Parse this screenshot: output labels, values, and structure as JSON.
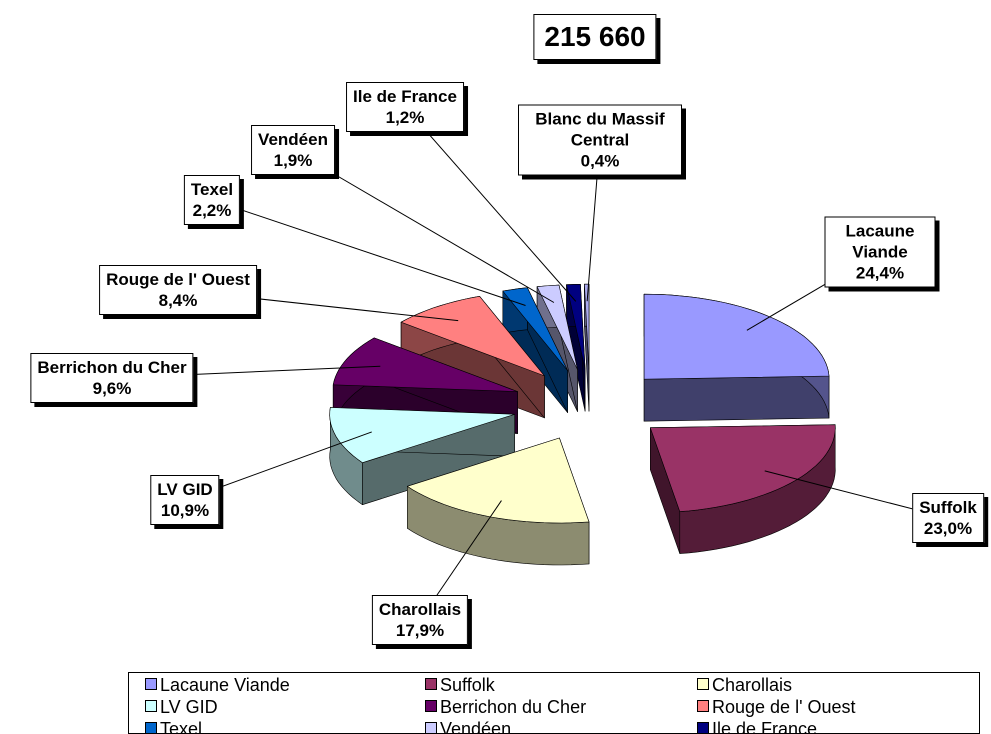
{
  "chart_data": {
    "type": "pie3d",
    "title": "215 660",
    "categories": [
      "Lacaune Viande",
      "Suffolk",
      "Charollais",
      "LV GID",
      "Berrichon du Cher",
      "Rouge de l' Ouest",
      "Texel",
      "Vendéen",
      "Ile de France",
      "Blanc du Massif Central"
    ],
    "values": [
      24.4,
      23.0,
      17.9,
      10.9,
      9.6,
      8.4,
      2.2,
      1.9,
      1.2,
      0.4
    ],
    "value_labels": [
      "24,4%",
      "23,0%",
      "17,9%",
      "10,9%",
      "9,6%",
      "8,4%",
      "2,2%",
      "1,9%",
      "1,2%",
      "0,4%"
    ],
    "colors": [
      "#9999ff",
      "#993366",
      "#ffffcc",
      "#ccffff",
      "#660066",
      "#ff8080",
      "#0066cc",
      "#ccccff",
      "#000080",
      "#aaaaee"
    ],
    "legend": "bottom"
  }
}
